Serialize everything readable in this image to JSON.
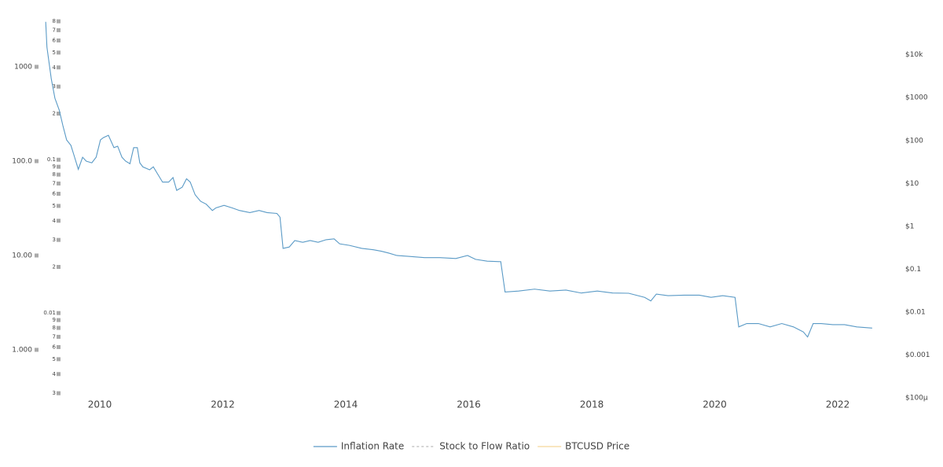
{
  "chart_data": {
    "type": "line",
    "x": [
      2009.12,
      2009.14,
      2009.21,
      2009.27,
      2009.34,
      2009.4,
      2009.46,
      2009.53,
      2009.59,
      2009.65,
      2009.72,
      2009.78,
      2009.87,
      2009.94,
      2010.01,
      2010.06,
      2010.14,
      2010.23,
      2010.29,
      2010.36,
      2010.42,
      2010.49,
      2010.55,
      2010.61,
      2010.65,
      2010.7,
      2010.81,
      2010.87,
      2010.93,
      2011.02,
      2011.12,
      2011.19,
      2011.25,
      2011.34,
      2011.41,
      2011.47,
      2011.55,
      2011.64,
      2011.73,
      2011.83,
      2011.89,
      2012.02,
      2012.15,
      2012.27,
      2012.44,
      2012.59,
      2012.72,
      2012.88,
      2012.93,
      2012.98,
      2013.08,
      2013.17,
      2013.3,
      2013.42,
      2013.55,
      2013.68,
      2013.81,
      2013.9,
      2014.06,
      2014.26,
      2014.45,
      2014.58,
      2014.7,
      2014.83,
      2015.02,
      2015.28,
      2015.53,
      2015.79,
      2015.98,
      2016.11,
      2016.3,
      2016.52,
      2016.59,
      2016.81,
      2017.07,
      2017.32,
      2017.58,
      2017.83,
      2018.09,
      2018.34,
      2018.6,
      2018.86,
      2018.96,
      2019.05,
      2019.24,
      2019.5,
      2019.75,
      2019.94,
      2020.13,
      2020.33,
      2020.39,
      2020.52,
      2020.71,
      2020.9,
      2021.09,
      2021.28,
      2021.44,
      2021.51,
      2021.6,
      2021.73,
      2021.92,
      2022.11,
      2022.31,
      2022.56
    ],
    "series": [
      {
        "name": "Inflation Rate",
        "color": "#5a9ac6",
        "values": [
          3000,
          1615,
          750,
          464,
          348,
          237,
          168,
          147,
          110,
          82,
          110,
          100,
          96,
          110,
          168,
          178,
          188,
          139,
          144,
          110,
          100,
          94,
          139,
          139,
          96,
          87,
          81,
          87,
          75,
          60,
          60,
          67,
          49,
          53,
          65,
          60,
          44,
          37.5,
          35,
          30,
          32,
          34,
          32,
          30,
          28.5,
          30,
          28.5,
          27.9,
          25.5,
          11.9,
          12.3,
          14.4,
          13.8,
          14.4,
          13.8,
          14.7,
          15.0,
          13.3,
          12.8,
          11.9,
          11.5,
          11.1,
          10.6,
          10,
          9.8,
          9.5,
          9.5,
          9.3,
          10,
          9.1,
          8.7,
          8.6,
          4.1,
          4.2,
          4.4,
          4.2,
          4.3,
          4.0,
          4.2,
          4.0,
          3.98,
          3.6,
          3.3,
          3.9,
          3.75,
          3.8,
          3.8,
          3.6,
          3.75,
          3.6,
          1.75,
          1.9,
          1.9,
          1.75,
          1.9,
          1.75,
          1.55,
          1.37,
          1.9,
          1.9,
          1.85,
          1.85,
          1.75,
          1.7
        ]
      },
      {
        "name": "Stock to Flow Ratio",
        "color": "#bbbbbb",
        "dash": true,
        "axis": "y2",
        "hidden": true
      },
      {
        "name": "BTCUSD Price",
        "color": "#f5d89a",
        "axis": "y3",
        "hidden": true
      }
    ],
    "xlim": [
      2009.1,
      2022.6
    ],
    "xticks": [
      2010,
      2012,
      2014,
      2016,
      2018,
      2020,
      2022
    ],
    "yscale": "log",
    "ylim": [
      0.31,
      3162
    ],
    "yticks": [
      1000,
      {
        "value": 100,
        "label": "100.0"
      },
      {
        "value": 10,
        "label": "10.00"
      },
      {
        "value": 1,
        "label": "1.000"
      }
    ],
    "y2scale": "log",
    "y2lim": [
      0.0028,
      0.82
    ],
    "y2ticks": [
      {
        "value": 0.8,
        "label": "8"
      },
      {
        "value": 0.7,
        "label": "7"
      },
      {
        "value": 0.6,
        "label": "6"
      },
      {
        "value": 0.5,
        "label": "5"
      },
      {
        "value": 0.4,
        "label": "4"
      },
      {
        "value": 0.3,
        "label": "3"
      },
      {
        "value": 0.2,
        "label": "2"
      },
      0.1,
      {
        "value": 0.09,
        "label": "9"
      },
      {
        "value": 0.08,
        "label": "8"
      },
      {
        "value": 0.07,
        "label": "7"
      },
      {
        "value": 0.06,
        "label": "6"
      },
      {
        "value": 0.05,
        "label": "5"
      },
      {
        "value": 0.04,
        "label": "4"
      },
      {
        "value": 0.03,
        "label": "3"
      },
      {
        "value": 0.02,
        "label": "2"
      },
      0.01,
      {
        "value": 0.009,
        "label": "9"
      },
      {
        "value": 0.008,
        "label": "8"
      },
      {
        "value": 0.007,
        "label": "7"
      },
      {
        "value": 0.006,
        "label": "6"
      },
      {
        "value": 0.005,
        "label": "5"
      },
      {
        "value": 0.004,
        "label": "4"
      },
      {
        "value": 0.003,
        "label": "3"
      }
    ],
    "y3scale": "log",
    "y3lim": [
      0.0001,
      66000
    ],
    "y3ticks": [
      {
        "value": 10000,
        "label": "$10k"
      },
      {
        "value": 1000,
        "label": "$1000"
      },
      {
        "value": 100,
        "label": "$100"
      },
      {
        "value": 10,
        "label": "$10"
      },
      {
        "value": 1,
        "label": "$1"
      },
      {
        "value": 0.1,
        "label": "$0.1"
      },
      {
        "value": 0.01,
        "label": "$0.01"
      },
      {
        "value": 0.001,
        "label": "$0.001"
      },
      {
        "value": 0.0001,
        "label": "$100µ"
      }
    ],
    "grid": false,
    "legend": "bottom"
  }
}
